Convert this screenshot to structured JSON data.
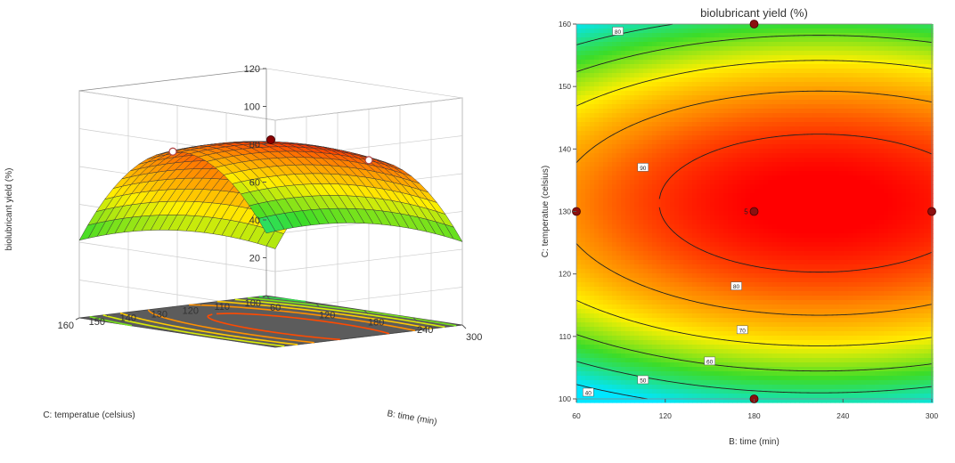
{
  "chart_data": [
    {
      "type": "surface3d",
      "title": "",
      "xlabel": "B: time (min)",
      "ylabel": "C: temperatue (celsius)",
      "zlabel": "biolubricant yield (%)",
      "x_ticks": [
        "60",
        "120",
        "180",
        "240",
        "300"
      ],
      "y_ticks": [
        "100",
        "110",
        "120",
        "130",
        "140",
        "150",
        "160"
      ],
      "z_ticks": [
        "20",
        "40",
        "60",
        "80",
        "100",
        "120"
      ],
      "xlim": [
        60,
        300
      ],
      "ylim": [
        100,
        160
      ],
      "zlim": [
        0,
        120
      ],
      "model": {
        "b0": 95,
        "bx": 5.5,
        "by": 4,
        "bxy": 0,
        "bxx": -7.5,
        "byy": -45,
        "center": [
          180,
          130
        ],
        "half_range": [
          120,
          30
        ]
      },
      "points": [
        {
          "x": 180,
          "y": 130,
          "z": 96,
          "style": "filled"
        },
        {
          "x": 60,
          "y": 130,
          "z": 82,
          "style": "open"
        },
        {
          "x": 300,
          "y": 130,
          "z": 93,
          "style": "open"
        }
      ]
    },
    {
      "type": "contour",
      "title": "biolubricant yield (%)",
      "xlabel": "B: time (min)",
      "ylabel": "C: temperatue (celsius)",
      "x_ticks": [
        "60",
        "120",
        "180",
        "240",
        "300"
      ],
      "y_ticks": [
        "100",
        "110",
        "120",
        "130",
        "140",
        "150",
        "160"
      ],
      "xlim": [
        60,
        300
      ],
      "ylim": [
        100,
        160
      ],
      "levels": [
        40,
        50,
        60,
        70,
        80,
        90
      ],
      "contour_labels": [
        {
          "x": 68,
          "y": 101,
          "text": "40"
        },
        {
          "x": 105,
          "y": 103,
          "text": "50"
        },
        {
          "x": 150,
          "y": 106,
          "text": "60"
        },
        {
          "x": 172,
          "y": 111,
          "text": "70"
        },
        {
          "x": 168,
          "y": 118,
          "text": "80"
        },
        {
          "x": 105,
          "y": 137,
          "text": "90"
        },
        {
          "x": 88,
          "y": 158.8,
          "text": "80"
        }
      ],
      "design_points": [
        {
          "x": 180,
          "y": 160
        },
        {
          "x": 60,
          "y": 130
        },
        {
          "x": 180,
          "y": 130,
          "text": "5"
        },
        {
          "x": 300,
          "y": 130
        },
        {
          "x": 180,
          "y": 100
        }
      ]
    }
  ]
}
